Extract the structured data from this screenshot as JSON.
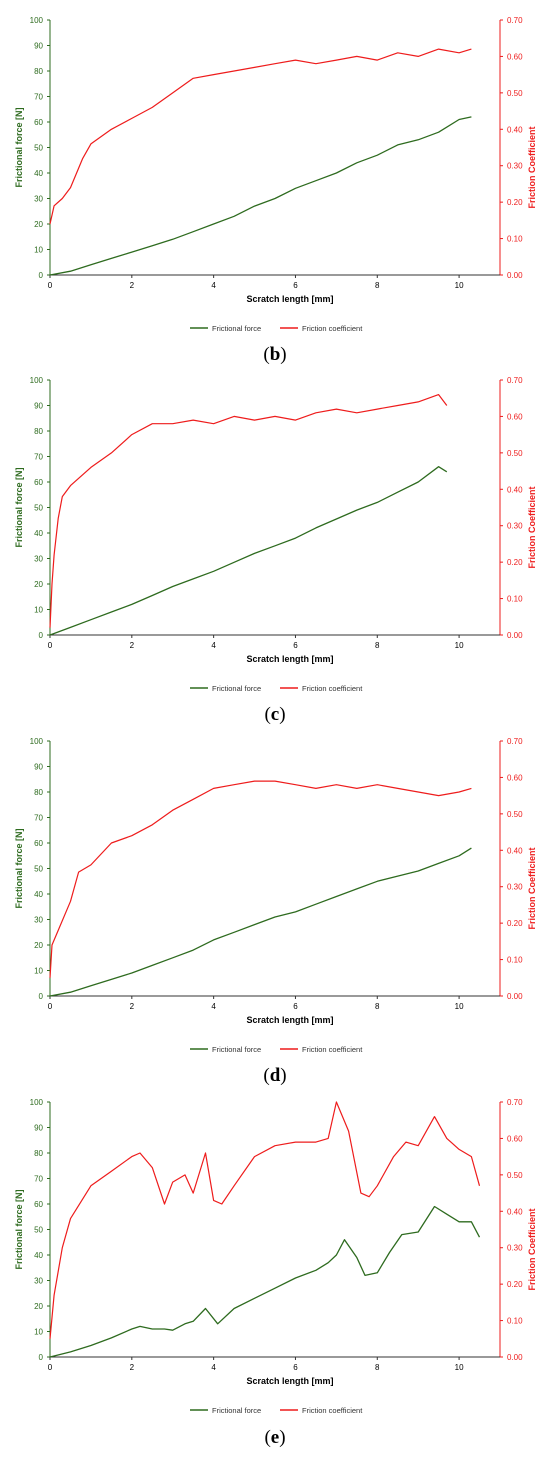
{
  "chart_data": [
    {
      "type": "line",
      "panel_label": "b",
      "xlabel": "Scratch length [mm]",
      "ylabel": "Frictional force [N]",
      "y2label": "Friction Coefficient",
      "xlim": [
        0,
        11
      ],
      "ylim": [
        0,
        100
      ],
      "y2lim": [
        0,
        0.7
      ],
      "x_ticks": [
        "0",
        "2",
        "4",
        "6",
        "8",
        "10"
      ],
      "y_ticks": [
        "0",
        "10",
        "20",
        "30",
        "40",
        "50",
        "60",
        "70",
        "80",
        "90",
        "100"
      ],
      "y2_ticks": [
        "0.00",
        "0.10",
        "0.20",
        "0.30",
        "0.40",
        "0.50",
        "0.60",
        "0.70"
      ],
      "legend_placement": "bottom",
      "grid": false,
      "series": [
        {
          "name": "Frictional force",
          "axis": "left",
          "color": "#2e6b1f",
          "x": [
            0,
            0.5,
            1,
            1.5,
            2,
            2.5,
            3,
            3.5,
            4,
            4.5,
            5,
            5.5,
            6,
            6.5,
            7,
            7.5,
            8,
            8.5,
            9,
            9.5,
            10,
            10.3
          ],
          "y": [
            0,
            1.5,
            4,
            6.5,
            9,
            11.5,
            14,
            17,
            20,
            23,
            27,
            30,
            34,
            37,
            40,
            44,
            47,
            51,
            53,
            56,
            61,
            62
          ]
        },
        {
          "name": "Friction coefficient",
          "axis": "right",
          "color": "#ee1c1c",
          "x": [
            0,
            0.1,
            0.3,
            0.5,
            0.8,
            1,
            1.5,
            2,
            2.5,
            3,
            3.5,
            4,
            4.5,
            5,
            5.5,
            6,
            6.5,
            7,
            7.5,
            8,
            8.5,
            9,
            9.5,
            10,
            10.3
          ],
          "y": [
            0.14,
            0.19,
            0.21,
            0.24,
            0.32,
            0.36,
            0.4,
            0.43,
            0.46,
            0.5,
            0.54,
            0.55,
            0.56,
            0.57,
            0.58,
            0.59,
            0.58,
            0.59,
            0.6,
            0.59,
            0.61,
            0.6,
            0.62,
            0.61,
            0.62
          ]
        }
      ]
    },
    {
      "type": "line",
      "panel_label": "c",
      "xlabel": "Scratch length [mm]",
      "ylabel": "Frictional force [N]",
      "y2label": "Friction Coefficient",
      "xlim": [
        0,
        11
      ],
      "ylim": [
        0,
        100
      ],
      "y2lim": [
        0,
        0.7
      ],
      "x_ticks": [
        "0",
        "2",
        "4",
        "6",
        "8",
        "10"
      ],
      "y_ticks": [
        "0",
        "10",
        "20",
        "30",
        "40",
        "50",
        "60",
        "70",
        "80",
        "90",
        "100"
      ],
      "y2_ticks": [
        "0.00",
        "0.10",
        "0.20",
        "0.30",
        "0.40",
        "0.50",
        "0.60",
        "0.70"
      ],
      "legend_placement": "bottom",
      "grid": false,
      "series": [
        {
          "name": "Frictional force",
          "axis": "left",
          "color": "#2e6b1f",
          "x": [
            0,
            0.5,
            1,
            1.5,
            2,
            2.5,
            3,
            3.5,
            4,
            4.5,
            5,
            5.5,
            6,
            6.5,
            7,
            7.5,
            8,
            8.5,
            9,
            9.5,
            9.7
          ],
          "y": [
            0,
            3,
            6,
            9,
            12,
            15.5,
            19,
            22,
            25,
            28.5,
            32,
            35,
            38,
            42,
            45.5,
            49,
            52,
            56,
            60,
            66,
            64
          ]
        },
        {
          "name": "Friction coefficient",
          "axis": "right",
          "color": "#ee1c1c",
          "x": [
            0,
            0.05,
            0.1,
            0.2,
            0.3,
            0.5,
            1,
            1.5,
            2,
            2.5,
            3,
            3.5,
            4,
            4.5,
            5,
            5.5,
            6,
            6.5,
            7,
            7.5,
            8,
            8.5,
            9,
            9.5,
            9.7
          ],
          "y": [
            0.02,
            0.14,
            0.22,
            0.32,
            0.38,
            0.41,
            0.46,
            0.5,
            0.55,
            0.58,
            0.58,
            0.59,
            0.58,
            0.6,
            0.59,
            0.6,
            0.59,
            0.61,
            0.62,
            0.61,
            0.62,
            0.63,
            0.64,
            0.66,
            0.63
          ]
        }
      ]
    },
    {
      "type": "line",
      "panel_label": "d",
      "xlabel": "Scratch length [mm]",
      "ylabel": "Frictional force [N]",
      "y2label": "Friction Coefficient",
      "xlim": [
        0,
        11
      ],
      "ylim": [
        0,
        100
      ],
      "y2lim": [
        0,
        0.7
      ],
      "x_ticks": [
        "0",
        "2",
        "4",
        "6",
        "8",
        "10"
      ],
      "y_ticks": [
        "0",
        "10",
        "20",
        "30",
        "40",
        "50",
        "60",
        "70",
        "80",
        "90",
        "100"
      ],
      "y2_ticks": [
        "0.00",
        "0.10",
        "0.20",
        "0.30",
        "0.40",
        "0.50",
        "0.60",
        "0.70"
      ],
      "legend_placement": "bottom",
      "grid": false,
      "series": [
        {
          "name": "Frictional force",
          "axis": "left",
          "color": "#2e6b1f",
          "x": [
            0,
            0.5,
            1,
            1.5,
            2,
            2.5,
            3,
            3.5,
            4,
            4.5,
            5,
            5.5,
            6,
            6.5,
            7,
            7.5,
            8,
            8.5,
            9,
            9.5,
            10,
            10.3
          ],
          "y": [
            0,
            1.5,
            4,
            6.5,
            9,
            12,
            15,
            18,
            22,
            25,
            28,
            31,
            33,
            36,
            39,
            42,
            45,
            47,
            49,
            52,
            55,
            58
          ]
        },
        {
          "name": "Friction coefficient",
          "axis": "right",
          "color": "#ee1c1c",
          "x": [
            0,
            0.05,
            0.2,
            0.5,
            0.7,
            1,
            1.5,
            2,
            2.5,
            3,
            3.5,
            4,
            4.5,
            5,
            5.5,
            6,
            6.5,
            7,
            7.5,
            8,
            8.5,
            9,
            9.5,
            10,
            10.3
          ],
          "y": [
            0.05,
            0.14,
            0.18,
            0.26,
            0.34,
            0.36,
            0.42,
            0.44,
            0.47,
            0.51,
            0.54,
            0.57,
            0.58,
            0.59,
            0.59,
            0.58,
            0.57,
            0.58,
            0.57,
            0.58,
            0.57,
            0.56,
            0.55,
            0.56,
            0.57
          ]
        }
      ]
    },
    {
      "type": "line",
      "panel_label": "e",
      "xlabel": "Scratch length [mm]",
      "ylabel": "Frictional force [N]",
      "y2label": "Friction Coefficient",
      "xlim": [
        0,
        11
      ],
      "ylim": [
        0,
        100
      ],
      "y2lim": [
        0,
        0.7
      ],
      "x_ticks": [
        "0",
        "2",
        "4",
        "6",
        "8",
        "10"
      ],
      "y_ticks": [
        "0",
        "10",
        "20",
        "30",
        "40",
        "50",
        "60",
        "70",
        "80",
        "90",
        "100"
      ],
      "y2_ticks": [
        "0.00",
        "0.10",
        "0.20",
        "0.30",
        "0.40",
        "0.50",
        "0.60",
        "0.70"
      ],
      "legend_placement": "bottom",
      "grid": false,
      "series": [
        {
          "name": "Frictional force",
          "axis": "left",
          "color": "#2e6b1f",
          "x": [
            0,
            0.5,
            1,
            1.5,
            2,
            2.2,
            2.5,
            2.8,
            3,
            3.3,
            3.5,
            3.8,
            4.1,
            4.5,
            5,
            5.5,
            6,
            6.5,
            6.8,
            7,
            7.2,
            7.5,
            7.7,
            8,
            8.3,
            8.6,
            9,
            9.4,
            9.7,
            10,
            10.3,
            10.5
          ],
          "y": [
            0,
            2,
            4.5,
            7.5,
            11,
            12,
            11,
            11,
            10.5,
            13,
            14,
            19,
            13,
            19,
            23,
            27,
            31,
            34,
            37,
            40,
            46,
            39,
            32,
            33,
            41,
            48,
            49,
            59,
            56,
            53,
            53,
            47
          ]
        },
        {
          "name": "Friction coefficient",
          "axis": "right",
          "color": "#ee1c1c",
          "x": [
            0,
            0.1,
            0.3,
            0.5,
            1,
            1.5,
            2,
            2.2,
            2.5,
            2.8,
            3,
            3.3,
            3.5,
            3.8,
            4,
            4.2,
            4.5,
            5,
            5.5,
            6,
            6.5,
            6.8,
            7,
            7.3,
            7.6,
            7.8,
            8,
            8.4,
            8.7,
            9,
            9.4,
            9.7,
            10,
            10.3,
            10.5
          ],
          "y": [
            0.05,
            0.17,
            0.3,
            0.38,
            0.47,
            0.51,
            0.55,
            0.56,
            0.52,
            0.42,
            0.48,
            0.5,
            0.45,
            0.56,
            0.43,
            0.42,
            0.47,
            0.55,
            0.58,
            0.59,
            0.59,
            0.6,
            0.7,
            0.62,
            0.45,
            0.44,
            0.47,
            0.55,
            0.59,
            0.58,
            0.66,
            0.6,
            0.57,
            0.55,
            0.47
          ]
        }
      ]
    }
  ],
  "captions": [
    "b",
    "c",
    "d",
    "e"
  ]
}
